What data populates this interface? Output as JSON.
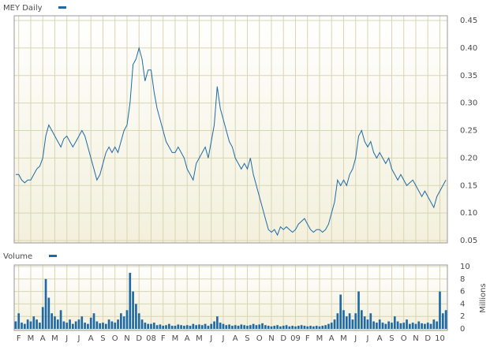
{
  "chart_data": [
    {
      "type": "line",
      "title": "MEY Daily",
      "color": "#1f6aa5",
      "grid": true,
      "ylim": [
        0.05,
        0.45
      ],
      "yticks": [
        0.05,
        {
          "value": 0.1,
          "label": "0.10"
        },
        0.15,
        {
          "value": 0.2,
          "label": "0.20"
        },
        0.25,
        {
          "value": 0.3,
          "label": "0.30"
        },
        0.35,
        {
          "value": 0.4,
          "label": "0.40"
        },
        0.45
      ],
      "values": [
        0.17,
        0.17,
        0.16,
        0.155,
        0.16,
        0.16,
        0.17,
        0.18,
        0.185,
        0.2,
        0.24,
        0.26,
        0.25,
        0.24,
        0.23,
        0.22,
        0.235,
        0.24,
        0.23,
        0.22,
        0.23,
        0.24,
        0.25,
        0.24,
        0.22,
        0.2,
        0.18,
        0.16,
        0.17,
        0.19,
        0.21,
        0.22,
        0.21,
        0.22,
        0.21,
        0.23,
        0.25,
        0.26,
        0.3,
        0.37,
        0.38,
        0.4,
        0.38,
        0.34,
        0.36,
        0.36,
        0.32,
        0.29,
        0.27,
        0.25,
        0.23,
        0.22,
        0.21,
        0.21,
        0.22,
        0.21,
        0.2,
        0.18,
        0.17,
        0.16,
        0.19,
        0.2,
        0.21,
        0.22,
        0.2,
        0.23,
        0.26,
        0.33,
        0.29,
        0.27,
        0.25,
        0.23,
        0.22,
        0.2,
        0.19,
        0.18,
        0.19,
        0.18,
        0.2,
        0.17,
        0.15,
        0.13,
        0.11,
        0.09,
        0.07,
        0.065,
        0.07,
        0.06,
        0.075,
        0.07,
        0.075,
        0.07,
        0.065,
        0.07,
        0.08,
        0.085,
        0.09,
        0.08,
        0.07,
        0.065,
        0.07,
        0.07,
        0.065,
        0.07,
        0.08,
        0.1,
        0.12,
        0.16,
        0.15,
        0.16,
        0.15,
        0.17,
        0.18,
        0.2,
        0.24,
        0.25,
        0.23,
        0.22,
        0.23,
        0.21,
        0.2,
        0.21,
        0.2,
        0.19,
        0.2,
        0.18,
        0.17,
        0.16,
        0.17,
        0.16,
        0.15,
        0.155,
        0.16,
        0.15,
        0.14,
        0.13,
        0.14,
        0.13,
        0.12,
        0.11,
        0.13,
        0.14,
        0.15,
        0.16
      ]
    },
    {
      "type": "bar",
      "title": "Volume",
      "color": "#1f6aa5",
      "grid": true,
      "y_label": "Millions",
      "ylim": [
        0,
        10
      ],
      "yticks": [
        0,
        2,
        4,
        6,
        8,
        10
      ],
      "categories": [
        null,
        "F",
        null,
        null,
        null,
        "M",
        null,
        null,
        null,
        "A",
        null,
        null,
        null,
        "M",
        null,
        null,
        null,
        "J",
        null,
        null,
        null,
        "J",
        null,
        null,
        null,
        "A",
        null,
        null,
        null,
        "S",
        null,
        null,
        null,
        "O",
        null,
        null,
        null,
        "N",
        null,
        null,
        null,
        "D",
        null,
        null,
        null,
        "08",
        null,
        null,
        null,
        "F",
        null,
        null,
        null,
        "M",
        null,
        null,
        null,
        "A",
        null,
        null,
        null,
        "M",
        null,
        null,
        null,
        "J",
        null,
        null,
        null,
        "J",
        null,
        null,
        null,
        "A",
        null,
        null,
        null,
        "S",
        null,
        null,
        null,
        "O",
        null,
        null,
        null,
        "N",
        null,
        null,
        null,
        "D",
        null,
        null,
        null,
        "09",
        null,
        null,
        null,
        "F",
        null,
        null,
        null,
        "M",
        null,
        null,
        null,
        "A",
        null,
        null,
        null,
        "M",
        null,
        null,
        null,
        "J",
        null,
        null,
        null,
        "J",
        null,
        null,
        null,
        "A",
        null,
        null,
        null,
        "S",
        null,
        null,
        null,
        "O",
        null,
        null,
        null,
        "N",
        null,
        null,
        null,
        "D",
        null,
        null,
        null,
        "10",
        null,
        null
      ],
      "values": [
        1.2,
        2.5,
        1.0,
        0.8,
        1.5,
        1.2,
        2.0,
        1.5,
        1.0,
        3.5,
        8.0,
        5.0,
        2.5,
        2.0,
        1.5,
        3.0,
        1.2,
        1.0,
        1.5,
        0.8,
        1.2,
        1.5,
        2.0,
        1.0,
        0.8,
        1.8,
        2.5,
        1.2,
        0.9,
        1.0,
        0.8,
        1.5,
        1.2,
        1.0,
        1.5,
        2.5,
        2.0,
        3.0,
        9.0,
        6.0,
        4.0,
        2.5,
        1.5,
        1.0,
        0.8,
        0.8,
        1.0,
        0.6,
        0.7,
        0.5,
        0.6,
        0.8,
        0.5,
        0.5,
        0.7,
        0.6,
        0.5,
        0.6,
        0.5,
        0.8,
        0.6,
        0.7,
        0.6,
        0.8,
        0.5,
        0.8,
        1.2,
        2.0,
        1.0,
        0.8,
        0.6,
        0.7,
        0.5,
        0.6,
        0.5,
        0.7,
        0.6,
        0.5,
        0.6,
        0.8,
        0.6,
        0.7,
        0.9,
        0.6,
        0.5,
        0.4,
        0.5,
        0.6,
        0.4,
        0.5,
        0.6,
        0.4,
        0.5,
        0.4,
        0.5,
        0.6,
        0.5,
        0.4,
        0.5,
        0.4,
        0.5,
        0.4,
        0.5,
        0.6,
        0.8,
        1.0,
        1.5,
        2.5,
        5.5,
        3.0,
        2.0,
        2.5,
        1.5,
        2.5,
        6.0,
        3.0,
        2.0,
        1.5,
        2.5,
        1.2,
        1.0,
        1.5,
        1.0,
        0.8,
        1.2,
        1.0,
        2.0,
        1.2,
        0.9,
        1.0,
        1.5,
        0.8,
        1.0,
        0.8,
        1.2,
        0.9,
        0.8,
        1.0,
        0.8,
        1.5,
        1.2,
        6.0,
        2.5,
        3.0
      ]
    }
  ]
}
